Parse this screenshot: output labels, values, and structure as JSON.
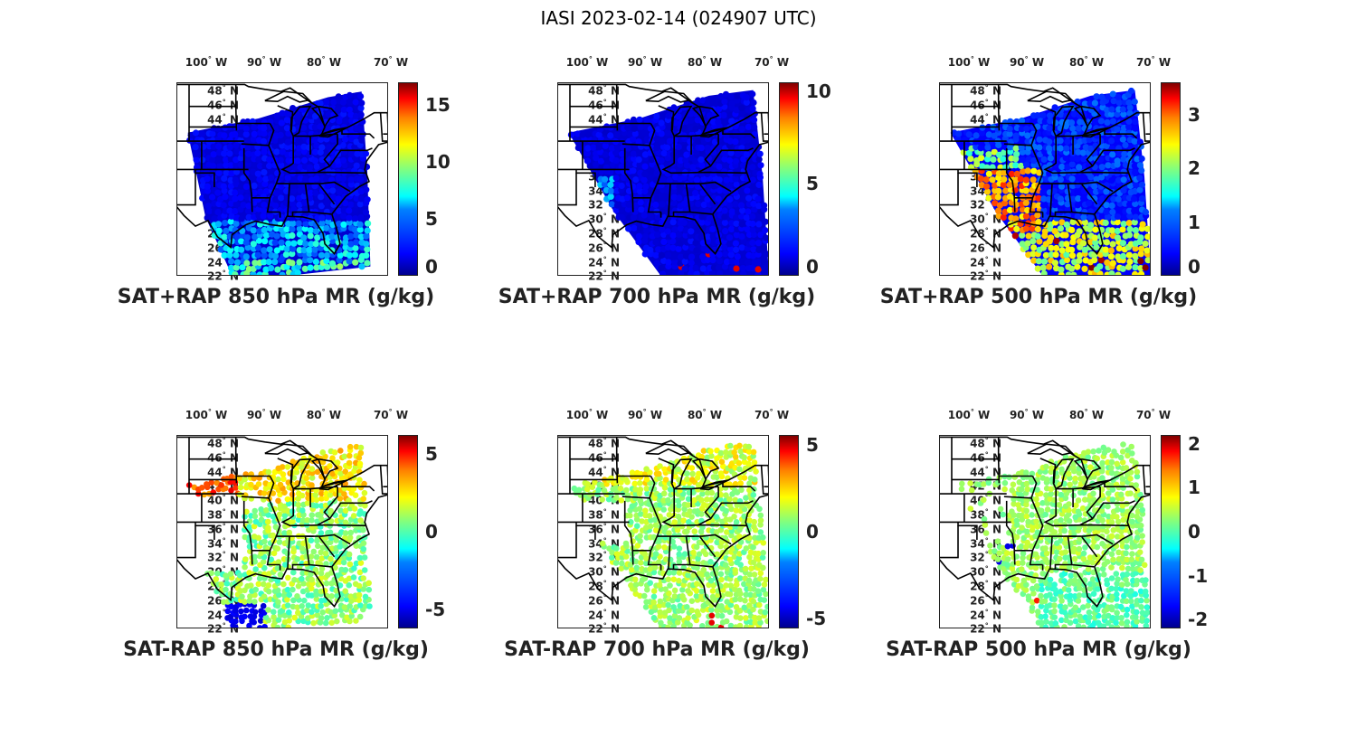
{
  "title": "IASI 2023-02-14 (024907 UTC)",
  "lon_labels": [
    {
      "deg": "100",
      "hem": "W"
    },
    {
      "deg": "90",
      "hem": "W"
    },
    {
      "deg": "80",
      "hem": "W"
    },
    {
      "deg": "70",
      "hem": "W"
    }
  ],
  "lat_labels": [
    "48",
    "46",
    "44",
    "42",
    "40",
    "38",
    "36",
    "34",
    "32",
    "30",
    "28",
    "26",
    "24",
    "22"
  ],
  "degree_symbol": "°",
  "north": "N",
  "colors": {
    "colormap": "jet",
    "map_lines": "#000000",
    "background": "#ffffff"
  },
  "panels": [
    {
      "caption": "SAT+RAP 850 hPa MR (g/kg)",
      "cbar_ticks": [
        "15",
        "10",
        "5",
        "0"
      ],
      "cbar_range": [
        0,
        17
      ],
      "field": "total",
      "level": "850"
    },
    {
      "caption": "SAT+RAP 700 hPa MR (g/kg)",
      "cbar_ticks": [
        "10",
        "5",
        "0"
      ],
      "cbar_range": [
        0,
        10.5
      ],
      "field": "total",
      "level": "700"
    },
    {
      "caption": "SAT+RAP 500 hPa MR (g/kg)",
      "cbar_ticks": [
        "3",
        "2",
        "1",
        "0"
      ],
      "cbar_range": [
        0,
        3.6
      ],
      "field": "total",
      "level": "500"
    },
    {
      "caption": "SAT-RAP 850 hPa MR (g/kg)",
      "cbar_ticks": [
        "5",
        "0",
        "-5"
      ],
      "cbar_range": [
        -6.2,
        6.2
      ],
      "field": "diff",
      "level": "850"
    },
    {
      "caption": "SAT-RAP 700 hPa MR (g/kg)",
      "cbar_ticks": [
        "5",
        "0",
        "-5"
      ],
      "cbar_range": [
        -5.6,
        5.6
      ],
      "field": "diff",
      "level": "700"
    },
    {
      "caption": "SAT-RAP 500 hPa MR (g/kg)",
      "cbar_ticks": [
        "2",
        "1",
        "0",
        "-1",
        "-2"
      ],
      "cbar_range": [
        -2.2,
        2.2
      ],
      "field": "diff",
      "level": "500"
    }
  ]
}
